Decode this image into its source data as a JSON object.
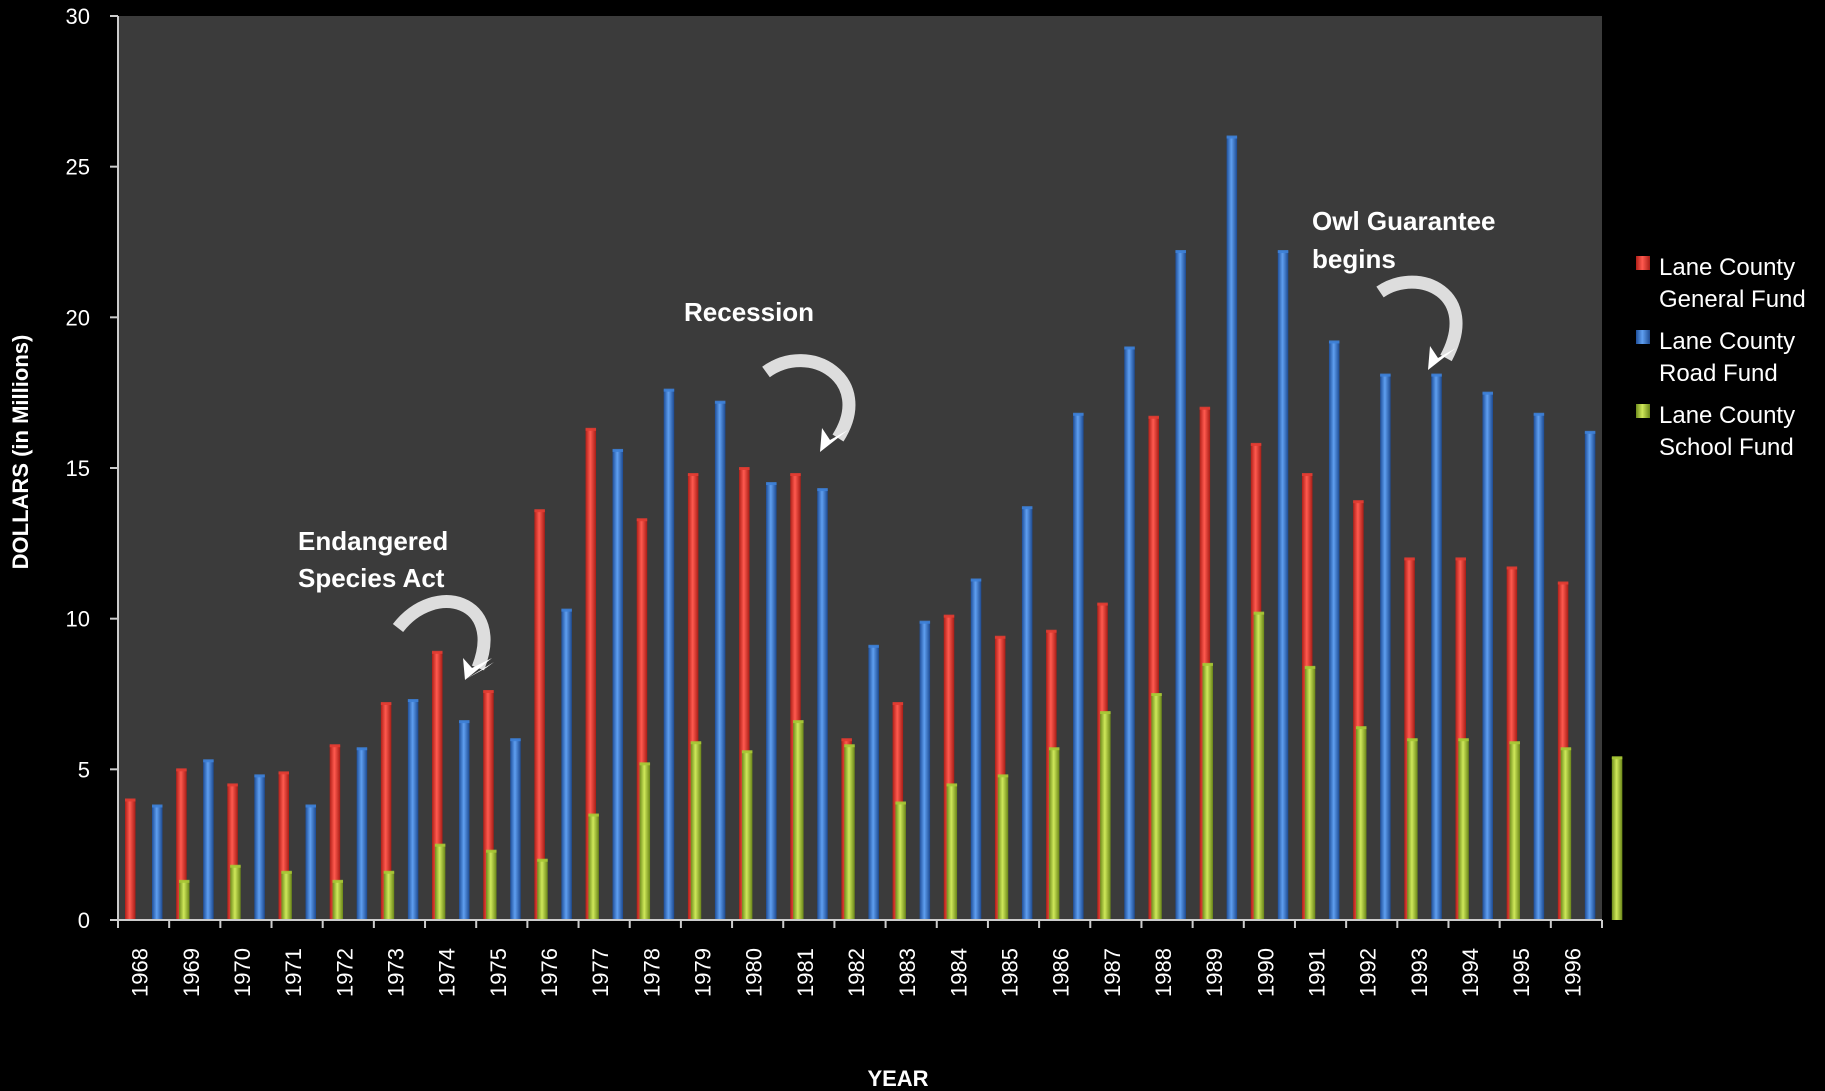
{
  "chart_data": {
    "type": "bar",
    "title": "",
    "xlabel": "YEAR",
    "ylabel": "DOLLARS (in Millions)",
    "ylim": [
      0,
      30
    ],
    "yticks": [
      0,
      5,
      10,
      15,
      20,
      25,
      30
    ],
    "grid": false,
    "legend_position": "right",
    "categories": [
      "1968",
      "1969",
      "1970",
      "1971",
      "1972",
      "1973",
      "1974",
      "1975",
      "1976",
      "1977",
      "1978",
      "1979",
      "1980",
      "1981",
      "1982",
      "1983",
      "1984",
      "1985",
      "1986",
      "1987",
      "1988",
      "1989",
      "1990",
      "1991",
      "1992",
      "1993",
      "1994",
      "1995",
      "1996"
    ],
    "series": [
      {
        "name": "Lane County General Fund",
        "color": "#e03c32",
        "values": [
          4.0,
          5.0,
          4.5,
          4.9,
          5.8,
          7.2,
          8.9,
          7.6,
          13.6,
          16.3,
          13.3,
          14.8,
          15.0,
          14.8,
          6.0,
          7.2,
          10.1,
          9.4,
          9.6,
          10.5,
          16.7,
          17.0,
          15.8,
          14.8,
          13.9,
          12.0,
          12.0,
          11.7,
          11.2
        ]
      },
      {
        "name": "Lane County Road Fund",
        "color": "#3d7fd6",
        "values": [
          3.8,
          5.3,
          4.8,
          3.8,
          5.7,
          7.3,
          6.6,
          6.0,
          10.3,
          15.6,
          17.6,
          17.2,
          14.5,
          14.3,
          9.1,
          9.9,
          11.3,
          13.7,
          16.8,
          19.0,
          22.2,
          26.0,
          22.2,
          19.2,
          18.1,
          18.1,
          17.5,
          16.8,
          16.2
        ]
      },
      {
        "name": "Lane County School Fund",
        "color": "#a6c635",
        "values": [
          1.3,
          1.8,
          1.6,
          1.3,
          1.6,
          2.5,
          2.3,
          2.0,
          3.5,
          5.2,
          5.9,
          5.6,
          6.6,
          5.8,
          3.9,
          4.5,
          4.8,
          5.7,
          6.9,
          7.5,
          8.5,
          10.2,
          8.4,
          6.4,
          6.0,
          6.0,
          5.9,
          5.7,
          5.4
        ]
      }
    ],
    "legend": [
      {
        "line1": "Lane County",
        "line2": "General Fund",
        "color": "#e03c32"
      },
      {
        "line1": "Lane County",
        "line2": "Road Fund",
        "color": "#3d7fd6"
      },
      {
        "line1": "Lane County",
        "line2": "School Fund",
        "color": "#a6c635"
      }
    ],
    "annotations": [
      {
        "lines": [
          "Endangered",
          "Species Act"
        ],
        "year": "1975"
      },
      {
        "lines": [
          "Recession"
        ],
        "year": "1981"
      },
      {
        "lines": [
          "Owl Guarantee",
          "begins"
        ],
        "year": "1993"
      }
    ]
  },
  "colors": {
    "page_background": "#000000",
    "plot_background": "#3b3b3b",
    "axis_color": "#cccccc"
  }
}
